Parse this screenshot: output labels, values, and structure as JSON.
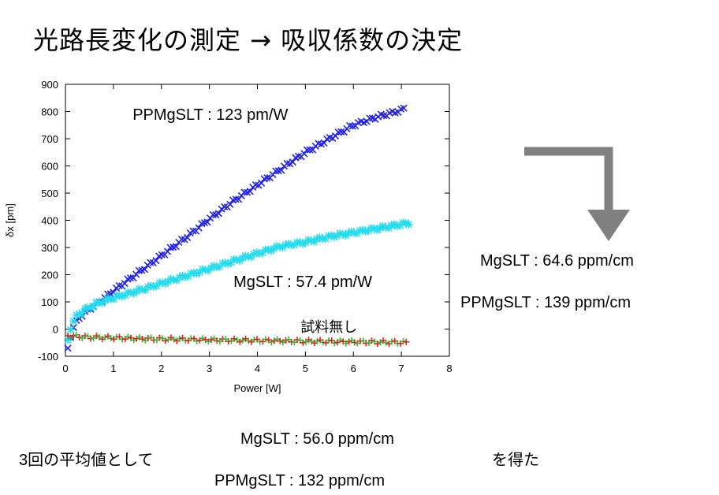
{
  "title": "光路長変化の測定 → 吸収係数の決定",
  "chart_data": {
    "type": "scatter",
    "xlabel": "Power [W]",
    "ylabel": "δx [pm]",
    "xlim": [
      0,
      8
    ],
    "ylim": [
      -100,
      900
    ],
    "x_ticks": [
      "0",
      "1",
      "2",
      "3",
      "4",
      "5",
      "6",
      "7",
      "8"
    ],
    "y_ticks": [
      "-100",
      "0",
      "100",
      "200",
      "300",
      "400",
      "500",
      "600",
      "700",
      "800",
      "900"
    ],
    "grid": false,
    "annotations": [
      {
        "text": "PPMgSLT : 123 pm/W",
        "x": 1.4,
        "y": 770
      },
      {
        "text": "MgSLT : 57.4 pm/W",
        "x": 3.5,
        "y": 155
      },
      {
        "text": "試料無し",
        "x": 4.9,
        "y": -10
      }
    ],
    "series": [
      {
        "label": "PPMgSLT : 123 pm/W",
        "color": "#2222ee",
        "marker": "x",
        "x": [
          0.05,
          0.1,
          0.2,
          0.3,
          0.5,
          0.75,
          1.0,
          1.5,
          2.0,
          2.5,
          3.0,
          3.5,
          4.0,
          4.5,
          5.0,
          5.5,
          6.0,
          6.5,
          7.0,
          7.05
        ],
        "y": [
          -70,
          -30,
          20,
          45,
          75,
          105,
          140,
          205,
          270,
          335,
          405,
          470,
          530,
          590,
          650,
          700,
          750,
          780,
          805,
          810
        ]
      },
      {
        "label": "MgSLT : 57.4 pm/W",
        "color": "#22ddee",
        "marker": "*",
        "x": [
          0.05,
          0.1,
          0.2,
          0.3,
          0.5,
          0.75,
          1.0,
          1.5,
          2.0,
          2.5,
          3.0,
          3.5,
          4.0,
          4.5,
          5.0,
          5.5,
          6.0,
          6.5,
          7.0,
          7.15
        ],
        "y": [
          -40,
          0,
          40,
          60,
          80,
          100,
          115,
          140,
          168,
          195,
          222,
          250,
          278,
          305,
          320,
          340,
          355,
          370,
          385,
          390
        ]
      },
      {
        "label": "試料無し",
        "color": "#dd2222",
        "marker": "+",
        "x": [
          0.05,
          0.5,
          1.0,
          1.5,
          2.0,
          2.5,
          3.0,
          3.5,
          4.0,
          4.5,
          5.0,
          5.5,
          6.0,
          6.5,
          7.0,
          7.1
        ],
        "y": [
          -25,
          -30,
          -32,
          -35,
          -37,
          -38,
          -40,
          -41,
          -42,
          -43,
          -45,
          -46,
          -47,
          -48,
          -49,
          -50
        ]
      }
    ]
  },
  "results": {
    "mgslt": "MgSLT : 64.6 ppm/cm",
    "ppmgslt": "PPMgSLT : 139 ppm/cm"
  },
  "arrow_color": "#808080",
  "bottom": {
    "left": "3回の平均値として",
    "mgslt": "MgSLT : 56.0 ppm/cm",
    "ppmgslt": "PPMgSLT : 132 ppm/cm",
    "right": "を得た"
  }
}
